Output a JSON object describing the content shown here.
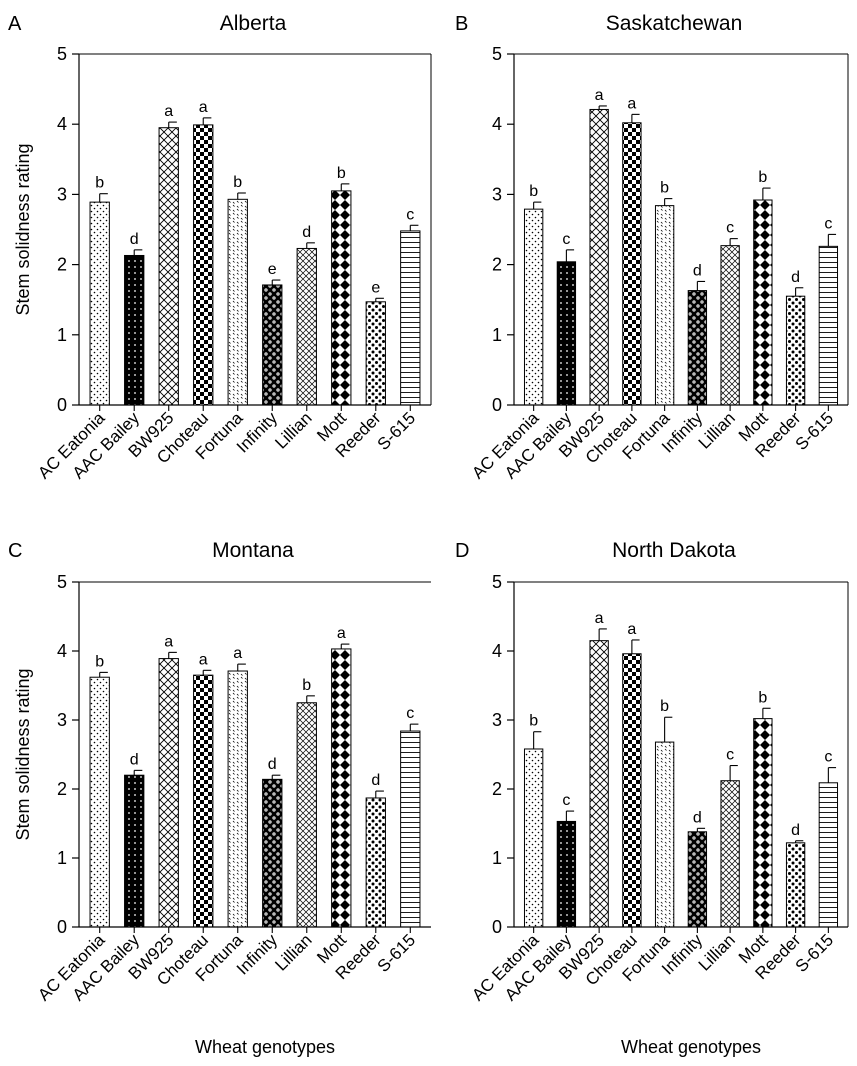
{
  "chart_data": [
    {
      "type": "bar",
      "panel": "A",
      "title": "Alberta",
      "ylabel": "Stem solidness rating",
      "xlabel": "",
      "ylim": [
        0,
        5
      ],
      "yticks": [
        "0",
        "1",
        "2",
        "3",
        "4",
        "5"
      ],
      "categories": [
        "AC Eatonia",
        "AAC Bailey",
        "BW925",
        "Choteau",
        "Fortuna",
        "Infinity",
        "Lillian",
        "Mott",
        "Reeder",
        "S-615"
      ],
      "values": [
        2.89,
        2.13,
        3.95,
        3.99,
        2.93,
        1.71,
        2.23,
        3.05,
        1.47,
        2.48
      ],
      "errors": [
        0.12,
        0.08,
        0.08,
        0.1,
        0.09,
        0.07,
        0.08,
        0.1,
        0.05,
        0.08
      ],
      "letters": [
        "b",
        "d",
        "a",
        "a",
        "b",
        "e",
        "d",
        "b",
        "e",
        "c"
      ],
      "grid": false
    },
    {
      "type": "bar",
      "panel": "B",
      "title": "Saskatchewan",
      "ylabel": "",
      "xlabel": "",
      "ylim": [
        0,
        5
      ],
      "yticks": [
        "0",
        "1",
        "2",
        "3",
        "4",
        "5"
      ],
      "categories": [
        "AC Eatonia",
        "AAC Bailey",
        "BW925",
        "Choteau",
        "Fortuna",
        "Infinity",
        "Lillian",
        "Mott",
        "Reeder",
        "S-615"
      ],
      "values": [
        2.79,
        2.04,
        4.21,
        4.02,
        2.84,
        1.63,
        2.27,
        2.92,
        1.55,
        2.26
      ],
      "errors": [
        0.1,
        0.17,
        0.05,
        0.12,
        0.1,
        0.13,
        0.1,
        0.17,
        0.12,
        0.17
      ],
      "letters": [
        "b",
        "c",
        "a",
        "a",
        "b",
        "d",
        "c",
        "b",
        "d",
        "c"
      ],
      "grid": false
    },
    {
      "type": "bar",
      "panel": "C",
      "title": "Montana",
      "ylabel": "Stem solidness rating",
      "xlabel": "Wheat genotypes",
      "ylim": [
        0,
        5
      ],
      "yticks": [
        "0",
        "1",
        "2",
        "3",
        "4",
        "5"
      ],
      "categories": [
        "AC Eatonia",
        "AAC Bailey",
        "BW925",
        "Choteau",
        "Fortuna",
        "Infinity",
        "Lillian",
        "Mott",
        "Reeder",
        "S-615"
      ],
      "values": [
        3.62,
        2.2,
        3.89,
        3.65,
        3.71,
        2.14,
        3.25,
        4.03,
        1.87,
        2.84
      ],
      "errors": [
        0.07,
        0.07,
        0.09,
        0.07,
        0.1,
        0.06,
        0.1,
        0.07,
        0.1,
        0.1
      ],
      "letters": [
        "b",
        "d",
        "a",
        "a",
        "a",
        "d",
        "b",
        "a",
        "d",
        "c"
      ],
      "grid": false
    },
    {
      "type": "bar",
      "panel": "D",
      "title": "North Dakota",
      "ylabel": "",
      "xlabel": "Wheat genotypes",
      "ylim": [
        0,
        5
      ],
      "yticks": [
        "0",
        "1",
        "2",
        "3",
        "4",
        "5"
      ],
      "categories": [
        "AC Eatonia",
        "AAC Bailey",
        "BW925",
        "Choteau",
        "Fortuna",
        "Infinity",
        "Lillian",
        "Mott",
        "Reeder",
        "S-615"
      ],
      "values": [
        2.58,
        1.53,
        4.15,
        3.96,
        2.68,
        1.38,
        2.12,
        3.02,
        1.22,
        2.09
      ],
      "errors": [
        0.25,
        0.15,
        0.17,
        0.2,
        0.36,
        0.05,
        0.22,
        0.15,
        0.03,
        0.22
      ],
      "letters": [
        "b",
        "c",
        "a",
        "a",
        "b",
        "d",
        "c",
        "b",
        "d",
        "c"
      ],
      "grid": false
    }
  ]
}
